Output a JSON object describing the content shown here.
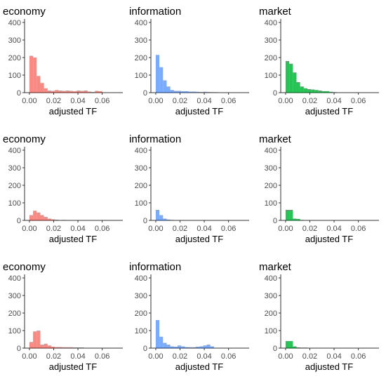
{
  "colors": {
    "economy": "#F8766D",
    "information": "#619CFF",
    "market": "#00BA38"
  },
  "chart_data": [
    {
      "type": "bar",
      "title": "economy",
      "xlabel": "adjusted TF",
      "ylabel": "",
      "row": 1,
      "col": 1,
      "color": "#F8766D",
      "bin_width": 0.003,
      "xlim": [
        -0.004,
        0.077
      ],
      "ylim": [
        0,
        420
      ],
      "xticks": [
        0.0,
        0.02,
        0.04,
        0.06
      ],
      "xtick_labels": [
        "0.00",
        "0.02",
        "0.04",
        "0.06"
      ],
      "yticks": [
        0,
        100,
        200,
        300,
        400
      ],
      "ytick_labels": [
        "0",
        "100",
        "200",
        "300",
        "400"
      ],
      "x": [
        0.0015,
        0.0045,
        0.0075,
        0.0105,
        0.0135,
        0.0165,
        0.0195,
        0.0225,
        0.0255,
        0.0285,
        0.0315,
        0.0345,
        0.0375,
        0.0405,
        0.0435,
        0.0465,
        0.0495,
        0.0525,
        0.0555,
        0.0585
      ],
      "values": [
        210,
        200,
        95,
        55,
        25,
        12,
        10,
        15,
        12,
        10,
        12,
        10,
        8,
        12,
        10,
        12,
        6,
        4,
        10,
        8
      ]
    },
    {
      "type": "bar",
      "title": "information",
      "xlabel": "adjusted TF",
      "ylabel": "",
      "row": 1,
      "col": 2,
      "color": "#619CFF",
      "bin_width": 0.003,
      "xlim": [
        -0.004,
        0.077
      ],
      "ylim": [
        0,
        420
      ],
      "xticks": [
        0.0,
        0.02,
        0.04,
        0.06
      ],
      "xtick_labels": [
        "0.00",
        "0.02",
        "0.04",
        "0.06"
      ],
      "yticks": [
        0,
        100,
        200,
        300,
        400
      ],
      "ytick_labels": [
        "0",
        "100",
        "200",
        "300",
        "400"
      ],
      "x": [
        0.0015,
        0.0045,
        0.0075,
        0.0105,
        0.0135,
        0.0165,
        0.0195,
        0.0225,
        0.0255,
        0.0285,
        0.0315,
        0.0345,
        0.0375,
        0.0405,
        0.0435,
        0.0465,
        0.0495
      ],
      "values": [
        215,
        145,
        70,
        35,
        15,
        10,
        10,
        8,
        8,
        6,
        6,
        5,
        4,
        5,
        4,
        3,
        3
      ]
    },
    {
      "type": "bar",
      "title": "market",
      "xlabel": "adjusted TF",
      "ylabel": "",
      "row": 1,
      "col": 3,
      "color": "#00BA38",
      "bin_width": 0.003,
      "xlim": [
        -0.004,
        0.077
      ],
      "ylim": [
        0,
        420
      ],
      "xticks": [
        0.0,
        0.02,
        0.04,
        0.06
      ],
      "xtick_labels": [
        "0.00",
        "0.02",
        "0.04",
        "0.06"
      ],
      "yticks": [
        0,
        100,
        200,
        300,
        400
      ],
      "ytick_labels": [
        "0",
        "100",
        "200",
        "300",
        "400"
      ],
      "x": [
        0.0015,
        0.0045,
        0.0075,
        0.0105,
        0.0135,
        0.0165,
        0.0195,
        0.0225,
        0.0255,
        0.0285,
        0.0315,
        0.0345,
        0.0375,
        0.0405
      ],
      "values": [
        180,
        165,
        115,
        60,
        35,
        25,
        20,
        18,
        15,
        12,
        8,
        8,
        5,
        3
      ]
    },
    {
      "type": "bar",
      "title": "economy",
      "xlabel": "adjusted TF",
      "ylabel": "",
      "row": 2,
      "col": 1,
      "color": "#F8766D",
      "bin_width": 0.003,
      "xlim": [
        -0.004,
        0.077
      ],
      "ylim": [
        0,
        420
      ],
      "xticks": [
        0.0,
        0.02,
        0.04,
        0.06
      ],
      "xtick_labels": [
        "0.00",
        "0.02",
        "0.04",
        "0.06"
      ],
      "yticks": [
        0,
        100,
        200,
        300,
        400
      ],
      "ytick_labels": [
        "0",
        "100",
        "200",
        "300",
        "400"
      ],
      "x": [
        0.0015,
        0.0045,
        0.0075,
        0.0105,
        0.0135,
        0.0165,
        0.0195,
        0.0225,
        0.0255,
        0.0285,
        0.0315,
        0.0345,
        0.0375,
        0.0405,
        0.0435,
        0.0465,
        0.0495
      ],
      "values": [
        30,
        55,
        45,
        30,
        20,
        10,
        6,
        4,
        2,
        3,
        2,
        0,
        0,
        2,
        0,
        0,
        2
      ]
    },
    {
      "type": "bar",
      "title": "information",
      "xlabel": "adjusted TF",
      "ylabel": "",
      "row": 2,
      "col": 2,
      "color": "#619CFF",
      "bin_width": 0.003,
      "xlim": [
        -0.004,
        0.077
      ],
      "ylim": [
        0,
        420
      ],
      "xticks": [
        0.0,
        0.02,
        0.04,
        0.06
      ],
      "xtick_labels": [
        "0.00",
        "0.02",
        "0.04",
        "0.06"
      ],
      "yticks": [
        0,
        100,
        200,
        300,
        400
      ],
      "ytick_labels": [
        "0",
        "100",
        "200",
        "300",
        "400"
      ],
      "x": [
        0.0015,
        0.0045,
        0.0075,
        0.0105,
        0.0135,
        0.0165,
        0.0195
      ],
      "values": [
        60,
        30,
        10,
        5,
        3,
        2,
        1
      ]
    },
    {
      "type": "bar",
      "title": "market",
      "xlabel": "adjusted TF",
      "ylabel": "",
      "row": 2,
      "col": 3,
      "color": "#00BA38",
      "bin_width": 0.003,
      "xlim": [
        -0.004,
        0.077
      ],
      "ylim": [
        0,
        420
      ],
      "xticks": [
        0.0,
        0.02,
        0.04,
        0.06
      ],
      "xtick_labels": [
        "0.00",
        "0.02",
        "0.04",
        "0.06"
      ],
      "yticks": [
        0,
        100,
        200,
        300,
        400
      ],
      "ytick_labels": [
        "0",
        "100",
        "200",
        "300",
        "400"
      ],
      "x": [
        0.0015,
        0.0045,
        0.0075,
        0.0105,
        0.0135,
        0.0165
      ],
      "values": [
        60,
        60,
        10,
        8,
        3,
        2
      ]
    },
    {
      "type": "bar",
      "title": "economy",
      "xlabel": "adjusted TF",
      "ylabel": "",
      "row": 3,
      "col": 1,
      "color": "#F8766D",
      "bin_width": 0.003,
      "xlim": [
        -0.004,
        0.077
      ],
      "ylim": [
        0,
        420
      ],
      "xticks": [
        0.0,
        0.02,
        0.04,
        0.06
      ],
      "xtick_labels": [
        "0.00",
        "0.02",
        "0.04",
        "0.06"
      ],
      "yticks": [
        0,
        100,
        200,
        300,
        400
      ],
      "ytick_labels": [
        "0",
        "100",
        "200",
        "300",
        "400"
      ],
      "x": [
        0.0015,
        0.0045,
        0.0075,
        0.0105,
        0.0135,
        0.0165,
        0.0195,
        0.0225,
        0.0255,
        0.0285,
        0.0315,
        0.0345,
        0.0375,
        0.0405,
        0.0435,
        0.0465,
        0.0495,
        0.0525,
        0.0555,
        0.0585
      ],
      "values": [
        35,
        95,
        100,
        20,
        25,
        15,
        8,
        6,
        6,
        5,
        5,
        5,
        4,
        4,
        4,
        0,
        2,
        0,
        0,
        2
      ]
    },
    {
      "type": "bar",
      "title": "information",
      "xlabel": "adjusted TF",
      "ylabel": "",
      "row": 3,
      "col": 2,
      "color": "#619CFF",
      "bin_width": 0.003,
      "xlim": [
        -0.004,
        0.077
      ],
      "ylim": [
        0,
        420
      ],
      "xticks": [
        0.0,
        0.02,
        0.04,
        0.06
      ],
      "xtick_labels": [
        "0.00",
        "0.02",
        "0.04",
        "0.06"
      ],
      "yticks": [
        0,
        100,
        200,
        300,
        400
      ],
      "ytick_labels": [
        "0",
        "100",
        "200",
        "300",
        "400"
      ],
      "x": [
        0.0015,
        0.0045,
        0.0075,
        0.0105,
        0.0135,
        0.0165,
        0.0195,
        0.0225,
        0.0255,
        0.0285,
        0.0315,
        0.0345,
        0.0375,
        0.0405,
        0.0435,
        0.0465
      ],
      "values": [
        160,
        65,
        30,
        20,
        10,
        8,
        15,
        10,
        6,
        5,
        5,
        8,
        10,
        15,
        20,
        10
      ]
    },
    {
      "type": "bar",
      "title": "market",
      "xlabel": "adjusted TF",
      "ylabel": "",
      "row": 3,
      "col": 3,
      "color": "#00BA38",
      "bin_width": 0.003,
      "xlim": [
        -0.004,
        0.077
      ],
      "ylim": [
        0,
        420
      ],
      "xticks": [
        0.0,
        0.02,
        0.04,
        0.06
      ],
      "xtick_labels": [
        "0.00",
        "0.02",
        "0.04",
        "0.06"
      ],
      "yticks": [
        0,
        100,
        200,
        300,
        400
      ],
      "ytick_labels": [
        "0",
        "100",
        "200",
        "300",
        "400"
      ],
      "x": [
        0.0015,
        0.0045,
        0.0075,
        0.0105,
        0.0135,
        0.0165,
        0.0195
      ],
      "values": [
        40,
        40,
        10,
        4,
        3,
        3,
        2
      ]
    }
  ]
}
